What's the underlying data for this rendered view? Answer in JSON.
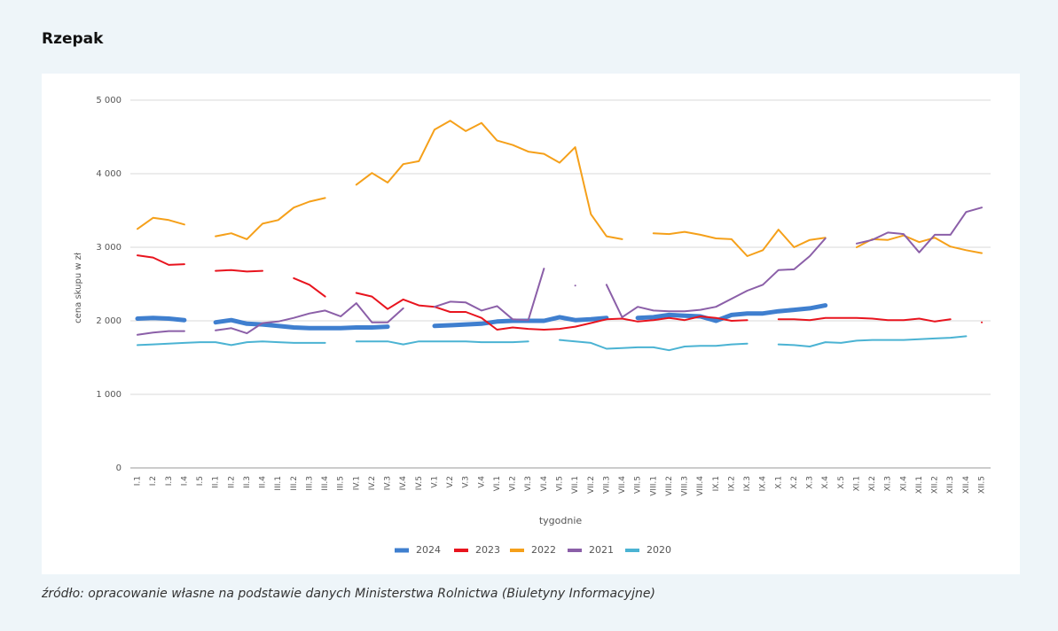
{
  "page": {
    "title": "Rzepak",
    "source": "źródło: opracowanie własne na podstawie danych Ministerstwa Rolnictwa (Biuletyny Informacyjne)"
  },
  "chart_data": {
    "type": "line",
    "y_label": "cena skupu w zł",
    "x_label": "tygodnie",
    "categories": [
      "I.1",
      "I.2",
      "I.3",
      "I.4",
      "I.5",
      "II.1",
      "II.2",
      "II.3",
      "II.4",
      "III.1",
      "III.2",
      "III.3",
      "III.4",
      "III.5",
      "IV.1",
      "IV.2",
      "IV.3",
      "IV.4",
      "IV.5",
      "V.1",
      "V.2",
      "V.3",
      "V.4",
      "VI.1",
      "VI.2",
      "VI.3",
      "VI.4",
      "VI.5",
      "VII.1",
      "VII.2",
      "VII.3",
      "VII.4",
      "VII.5",
      "VIII.1",
      "VIII.2",
      "VIII.3",
      "VIII.4",
      "IX.1",
      "IX.2",
      "IX.3",
      "IX.4",
      "X.1",
      "X.2",
      "X.3",
      "X.4",
      "X.5",
      "XI.1",
      "XI.2",
      "XI.3",
      "XI.4",
      "XII.1",
      "XII.2",
      "XII.3",
      "XII.4",
      "XII.5"
    ],
    "ylim": [
      0,
      5000
    ],
    "yticks": [
      0,
      {
        "value": 1000,
        "label": "1 000"
      },
      {
        "value": 2000,
        "label": "2 000"
      },
      {
        "value": 3000,
        "label": "3 000"
      },
      {
        "value": 4000,
        "label": "4 000"
      },
      {
        "value": 5000,
        "label": "5 000"
      }
    ],
    "grid": true,
    "legend": "bottom",
    "series": [
      {
        "name": "2024",
        "color": "#3f7fcf",
        "width": 5,
        "values": [
          2030,
          2040,
          2030,
          2010,
          null,
          1980,
          2010,
          1960,
          1950,
          1930,
          1910,
          1900,
          1900,
          1900,
          1910,
          1910,
          1920,
          null,
          null,
          1930,
          1940,
          1950,
          1960,
          1990,
          2000,
          2000,
          2000,
          2050,
          2010,
          2020,
          2040,
          null,
          2040,
          2050,
          2080,
          2070,
          2060,
          2000,
          2080,
          2100,
          2100,
          2130,
          2150,
          2170,
          2210,
          null,
          null,
          null,
          null,
          null,
          null,
          null,
          null,
          null,
          null
        ]
      },
      {
        "name": "2023",
        "color": "#e8141e",
        "width": 2,
        "values": [
          2890,
          2860,
          2760,
          2770,
          null,
          2680,
          2690,
          2670,
          2680,
          null,
          2580,
          2490,
          2330,
          null,
          2380,
          2330,
          2160,
          2290,
          2210,
          2190,
          2120,
          2120,
          2040,
          1880,
          1910,
          1890,
          1880,
          1890,
          1920,
          1970,
          2020,
          2030,
          1990,
          2010,
          2040,
          2010,
          2060,
          2040,
          2000,
          2010,
          null,
          2020,
          2020,
          2010,
          2040,
          2040,
          2040,
          2030,
          2010,
          2010,
          2030,
          1990,
          2020,
          null,
          1980
        ]
      },
      {
        "name": "2022",
        "color": "#f5a01a",
        "width": 2,
        "values": [
          3250,
          3400,
          3370,
          3310,
          null,
          3150,
          3190,
          3110,
          3320,
          3370,
          3540,
          3620,
          3670,
          null,
          3850,
          4010,
          3880,
          4130,
          4170,
          4600,
          4720,
          4580,
          4690,
          4450,
          4390,
          4300,
          4270,
          4150,
          4360,
          3450,
          3150,
          3110,
          null,
          3190,
          3180,
          3210,
          3170,
          3120,
          3110,
          2880,
          2960,
          3240,
          3000,
          3100,
          3130,
          null,
          3000,
          3110,
          3100,
          3160,
          3070,
          3130,
          3010,
          2960,
          2920
        ]
      },
      {
        "name": "2021",
        "color": "#8b5fa8",
        "width": 2,
        "values": [
          1810,
          1840,
          1860,
          1860,
          null,
          1870,
          1900,
          1830,
          1970,
          1990,
          2040,
          2100,
          2140,
          2060,
          2240,
          1980,
          1980,
          2170,
          null,
          2190,
          2260,
          2250,
          2140,
          2200,
          2020,
          2010,
          2710,
          null,
          2480,
          null,
          2490,
          2050,
          2190,
          2140,
          2130,
          2130,
          2150,
          2190,
          2300,
          2410,
          2490,
          2690,
          2700,
          2880,
          3120,
          null,
          3050,
          3100,
          3200,
          3180,
          2930,
          3170,
          3170,
          3480,
          3540
        ]
      },
      {
        "name": "2020",
        "color": "#4bb3d3",
        "width": 2,
        "values": [
          1670,
          1680,
          1690,
          1700,
          1710,
          1710,
          1670,
          1710,
          1720,
          1710,
          1700,
          1700,
          1700,
          null,
          1720,
          1720,
          1720,
          1680,
          1720,
          1720,
          1720,
          1720,
          1710,
          1710,
          1710,
          1720,
          null,
          1740,
          1720,
          1700,
          1620,
          1630,
          1640,
          1640,
          1600,
          1650,
          1660,
          1660,
          1680,
          1690,
          null,
          1680,
          1670,
          1650,
          1710,
          1700,
          1730,
          1740,
          1740,
          1740,
          1750,
          1760,
          1770,
          1790,
          null
        ]
      }
    ]
  }
}
